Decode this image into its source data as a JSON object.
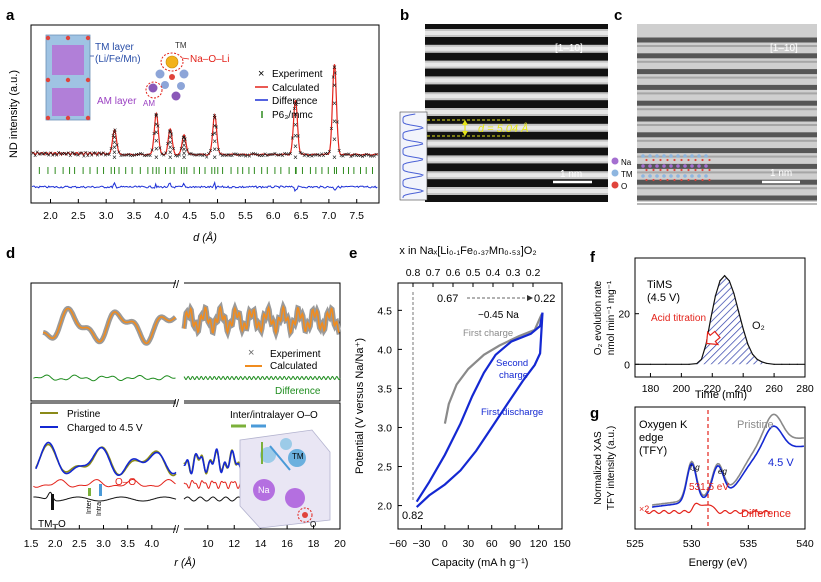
{
  "colors": {
    "experiment": "#111111",
    "calculated": "#e3231b",
    "difference": "#1c2fd6",
    "bragg": "#2e8b1e",
    "pdf_exp": "#8c8c8c",
    "pdf_calc": "#f08c1f",
    "pdf_diff": "#1e8c1e",
    "pristine": "#8a8a18",
    "charged": "#1428d2",
    "gray_curve": "#8a8a8a",
    "o2_fill": "#2a3aa8",
    "acid_red": "#e3231b"
  },
  "panel_a": {
    "label": "a",
    "ylabel": "ND intensity (a.u.)",
    "xlabel": "d (Å)",
    "xticks": [
      "2.0",
      "2.5",
      "3.0",
      "3.5",
      "4.0",
      "4.5",
      "5.0",
      "5.5",
      "6.0",
      "6.5",
      "7.0",
      "7.5"
    ],
    "legend": [
      "Experiment",
      "Calculated",
      "Difference",
      "P6₃/mmc"
    ],
    "inset_tm_layer": [
      "TM layer",
      "(Li/Fe/Mn)"
    ],
    "inset_am_layer": "AM layer",
    "inset_tm": "TM",
    "inset_am": "AM",
    "inset_naoli": "Na–O–Li",
    "peaks": [
      3.15,
      3.9,
      4.15,
      4.4,
      4.95,
      6.4,
      7.1
    ],
    "peak_heights": [
      0.28,
      0.46,
      0.28,
      0.22,
      0.44,
      0.6,
      1.0
    ]
  },
  "panel_b": {
    "label": "b",
    "zone": "[1–10]",
    "d_label": "d = 5.04 Å",
    "scale": "1 nm"
  },
  "panel_c": {
    "label": "c",
    "zone": "[1–10]",
    "scale": "1 nm",
    "legend": [
      "Na",
      "TM",
      "O"
    ]
  },
  "panel_d": {
    "label": "d",
    "top_legend": [
      "Experiment",
      "Calculated",
      "Difference"
    ],
    "bottom_legend": [
      "Pristine",
      "Charged to 4.5 V"
    ],
    "inter_intra": "Inter/intralayer O–O",
    "oo": "O–O",
    "tmo": "TM–O",
    "inter": "Inter",
    "intra": "Intra",
    "struct_tm": "TM",
    "struct_na": "Na",
    "struct_o": "O",
    "xlabel": "r (Å)",
    "xticks_left": [
      "1.5",
      "2.0",
      "2.5",
      "3.0",
      "3.5",
      "4.0"
    ],
    "xticks_right": [
      "10",
      "12",
      "14",
      "16",
      "18",
      "20"
    ]
  },
  "panel_e": {
    "label": "e",
    "top_axis_title": "x in Naₓ[Li₀.₁Fe₀.₃₇Mn₀.₅₃]O₂",
    "top_ticks": [
      "0.8",
      "0.7",
      "0.6",
      "0.5",
      "0.4",
      "0.3",
      "0.2"
    ],
    "ylabel": "Potential (V versus Na/Na⁺)",
    "yticks": [
      "2.0",
      "2.5",
      "3.0",
      "3.5",
      "4.0",
      "4.5"
    ],
    "xlabel": "Capacity (mA h g⁻¹)",
    "xticks": [
      "−60",
      "−30",
      "0",
      "30",
      "60",
      "90",
      "120",
      "150"
    ],
    "ann_start": "0.67",
    "ann_end": "0.22",
    "ann_na": "−0.45 Na",
    "ann_082": "0.82",
    "first_charge": "First charge",
    "second_charge": [
      "Second",
      "charge"
    ],
    "first_discharge": "First discharge"
  },
  "panel_f": {
    "label": "f",
    "ylabel": [
      "O₂ evolution rate",
      "nmol min⁻¹ mg⁻¹"
    ],
    "xlabel": "Time (min)",
    "xticks": [
      "180",
      "200",
      "220",
      "240",
      "260",
      "280"
    ],
    "yticks": [
      "0",
      "20"
    ],
    "title": [
      "TiMS",
      "(4.5 V)"
    ],
    "acid": "Acid titration",
    "o2": "O₂",
    "chart_data": {
      "type": "area",
      "x": [
        170,
        180,
        190,
        200,
        205,
        210,
        213,
        216,
        219,
        222,
        225,
        228,
        231,
        234,
        237,
        240,
        243,
        246,
        249,
        252,
        255,
        260,
        265,
        270,
        275,
        280
      ],
      "values": [
        0,
        0,
        0,
        0,
        0,
        0.3,
        2,
        8,
        18,
        27,
        33,
        35,
        33,
        28,
        21,
        14,
        8,
        4,
        2,
        1,
        0.4,
        0,
        0,
        0,
        0,
        0
      ],
      "title": "TiMS (4.5 V)",
      "xlabel": "Time (min)",
      "ylabel": "O₂ evolution rate (nmol min⁻¹ mg⁻¹)",
      "xlim": [
        170,
        280
      ],
      "ylim": [
        -5,
        42
      ]
    }
  },
  "panel_g": {
    "label": "g",
    "ylabel": [
      "Normalized XAS",
      "TFY intensity (a.u.)"
    ],
    "xlabel": "Energy (eV)",
    "xticks": [
      "525",
      "530",
      "535",
      "540"
    ],
    "title": [
      "Oxygen K",
      "edge",
      "(TFY)"
    ],
    "pristine": "Pristine",
    "v45": "4.5 V",
    "energy": "531.5 eV",
    "x2": "×2",
    "difference": "Difference",
    "t2g": "t₂g",
    "eg": "eg"
  }
}
